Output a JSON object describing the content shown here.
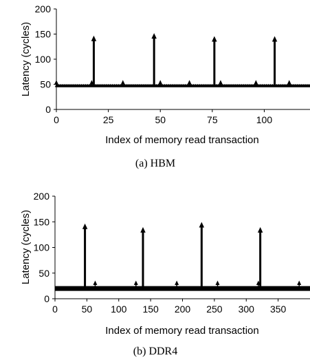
{
  "chart_data": [
    {
      "type": "line",
      "caption": "(a) HBM",
      "xlabel": "Index of memory read transaction",
      "ylabel": "Latency (cycles)",
      "xlim": [
        0,
        122
      ],
      "ylim": [
        0,
        200
      ],
      "xticks": [
        0,
        25,
        50,
        75,
        100
      ],
      "yticks": [
        0,
        50,
        100,
        150,
        200
      ],
      "baseline": 47,
      "peaks": [
        {
          "x": 18,
          "y": 140
        },
        {
          "x": 47,
          "y": 145
        },
        {
          "x": 76,
          "y": 139
        },
        {
          "x": 105,
          "y": 139
        }
      ],
      "small_peaks": [
        {
          "x": 0,
          "y": 53
        },
        {
          "x": 17,
          "y": 53
        },
        {
          "x": 32,
          "y": 53
        },
        {
          "x": 50,
          "y": 53
        },
        {
          "x": 64,
          "y": 53
        },
        {
          "x": 79,
          "y": 53
        },
        {
          "x": 96,
          "y": 53
        },
        {
          "x": 112,
          "y": 53
        }
      ],
      "grid": false
    },
    {
      "type": "line",
      "caption": "(b) DDR4",
      "xlabel": "Index of memory read transaction",
      "ylabel": "Latency (cycles)",
      "xlim": [
        0,
        400
      ],
      "ylim": [
        0,
        200
      ],
      "xticks": [
        0,
        50,
        100,
        150,
        200,
        250,
        300,
        350
      ],
      "yticks": [
        0,
        50,
        100,
        150,
        200
      ],
      "baseline": 20,
      "peaks": [
        {
          "x": 47,
          "y": 140
        },
        {
          "x": 138,
          "y": 133
        },
        {
          "x": 230,
          "y": 143
        },
        {
          "x": 322,
          "y": 133
        }
      ],
      "small_peaks": [
        {
          "x": 63,
          "y": 30
        },
        {
          "x": 127,
          "y": 30
        },
        {
          "x": 191,
          "y": 30
        },
        {
          "x": 255,
          "y": 30
        },
        {
          "x": 319,
          "y": 30
        },
        {
          "x": 383,
          "y": 30
        }
      ],
      "grid": false
    }
  ]
}
